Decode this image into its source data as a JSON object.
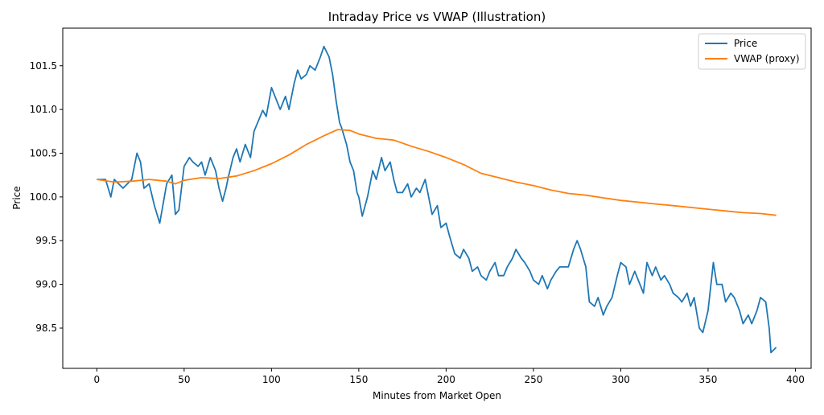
{
  "chart_data": {
    "type": "line",
    "title": "Intraday Price vs VWAP (Illustration)",
    "xlabel": "Minutes from Market Open",
    "ylabel": "Price",
    "xlim": [
      -19.5,
      409
    ],
    "ylim": [
      98.04,
      101.93
    ],
    "xticks": [
      0,
      50,
      100,
      150,
      200,
      250,
      300,
      350,
      400
    ],
    "yticks": [
      98.5,
      99.0,
      99.5,
      100.0,
      100.5,
      101.0,
      101.5
    ],
    "ytick_labels": [
      "98.5",
      "99.0",
      "99.5",
      "100.0",
      "100.5",
      "101.0",
      "101.5"
    ],
    "grid": false,
    "legend_position": "top-right",
    "series": [
      {
        "name": "Price",
        "color": "#1f77b4",
        "x": [
          0,
          5,
          8,
          10,
          15,
          20,
          23,
          25,
          27,
          30,
          33,
          36,
          40,
          43,
          45,
          47,
          50,
          53,
          55,
          58,
          60,
          62,
          65,
          68,
          70,
          72,
          74,
          75,
          78,
          80,
          82,
          85,
          88,
          90,
          95,
          97,
          100,
          103,
          105,
          108,
          110,
          113,
          115,
          117,
          120,
          122,
          125,
          128,
          130,
          133,
          135,
          137,
          139,
          140,
          143,
          145,
          147,
          149,
          150,
          152,
          155,
          158,
          160,
          163,
          165,
          168,
          170,
          172,
          175,
          178,
          180,
          183,
          185,
          188,
          190,
          192,
          195,
          197,
          200,
          202,
          205,
          208,
          210,
          213,
          215,
          218,
          220,
          223,
          225,
          228,
          230,
          233,
          235,
          238,
          240,
          243,
          245,
          248,
          250,
          253,
          255,
          258,
          260,
          263,
          265,
          268,
          270,
          273,
          275,
          277,
          280,
          282,
          285,
          287,
          290,
          292,
          295,
          298,
          300,
          303,
          305,
          308,
          310,
          313,
          315,
          318,
          320,
          323,
          325,
          328,
          330,
          333,
          335,
          338,
          340,
          342,
          345,
          347,
          350,
          353,
          355,
          358,
          360,
          363,
          365,
          368,
          370,
          373,
          375,
          378,
          380,
          383,
          385,
          386,
          389
        ],
        "y": [
          100.2,
          100.2,
          100.0,
          100.2,
          100.1,
          100.2,
          100.5,
          100.4,
          100.1,
          100.15,
          99.9,
          99.7,
          100.15,
          100.25,
          99.8,
          99.85,
          100.35,
          100.45,
          100.4,
          100.35,
          100.4,
          100.25,
          100.45,
          100.3,
          100.1,
          99.95,
          100.1,
          100.2,
          100.45,
          100.55,
          100.4,
          100.6,
          100.45,
          100.75,
          100.99,
          100.92,
          101.25,
          101.1,
          101.0,
          101.15,
          101.0,
          101.3,
          101.45,
          101.35,
          101.4,
          101.5,
          101.45,
          101.6,
          101.72,
          101.6,
          101.4,
          101.1,
          100.85,
          100.8,
          100.6,
          100.4,
          100.3,
          100.05,
          100.0,
          99.78,
          100.0,
          100.3,
          100.2,
          100.45,
          100.3,
          100.4,
          100.2,
          100.05,
          100.05,
          100.15,
          100.0,
          100.1,
          100.05,
          100.2,
          100.0,
          99.8,
          99.9,
          99.65,
          99.7,
          99.55,
          99.35,
          99.3,
          99.4,
          99.3,
          99.15,
          99.2,
          99.1,
          99.05,
          99.15,
          99.25,
          99.1,
          99.1,
          99.2,
          99.3,
          99.4,
          99.3,
          99.25,
          99.15,
          99.05,
          99.0,
          99.1,
          98.95,
          99.05,
          99.15,
          99.2,
          99.2,
          99.2,
          99.4,
          99.5,
          99.4,
          99.2,
          98.8,
          98.75,
          98.85,
          98.65,
          98.75,
          98.85,
          99.1,
          99.25,
          99.2,
          99.0,
          99.15,
          99.05,
          98.9,
          99.25,
          99.1,
          99.2,
          99.05,
          99.1,
          99.0,
          98.9,
          98.85,
          98.8,
          98.9,
          98.75,
          98.85,
          98.5,
          98.45,
          98.7,
          99.25,
          99.0,
          99.0,
          98.8,
          98.9,
          98.85,
          98.7,
          98.55,
          98.65,
          98.55,
          98.7,
          98.85,
          98.8,
          98.5,
          98.22,
          98.28
        ]
      },
      {
        "name": "VWAP (proxy)",
        "color": "#ff7f0e",
        "x": [
          0,
          10,
          20,
          30,
          40,
          45,
          50,
          60,
          70,
          80,
          90,
          100,
          110,
          120,
          130,
          138,
          145,
          150,
          160,
          170,
          180,
          190,
          200,
          210,
          220,
          230,
          240,
          250,
          260,
          270,
          280,
          290,
          300,
          310,
          320,
          330,
          340,
          350,
          360,
          370,
          380,
          389
        ],
        "y": [
          100.2,
          100.17,
          100.18,
          100.2,
          100.18,
          100.15,
          100.19,
          100.22,
          100.21,
          100.24,
          100.3,
          100.38,
          100.48,
          100.6,
          100.7,
          100.77,
          100.76,
          100.72,
          100.67,
          100.65,
          100.58,
          100.52,
          100.45,
          100.37,
          100.27,
          100.22,
          100.17,
          100.13,
          100.08,
          100.04,
          100.02,
          99.99,
          99.96,
          99.94,
          99.92,
          99.9,
          99.88,
          99.86,
          99.84,
          99.82,
          99.81,
          99.79
        ]
      }
    ]
  }
}
